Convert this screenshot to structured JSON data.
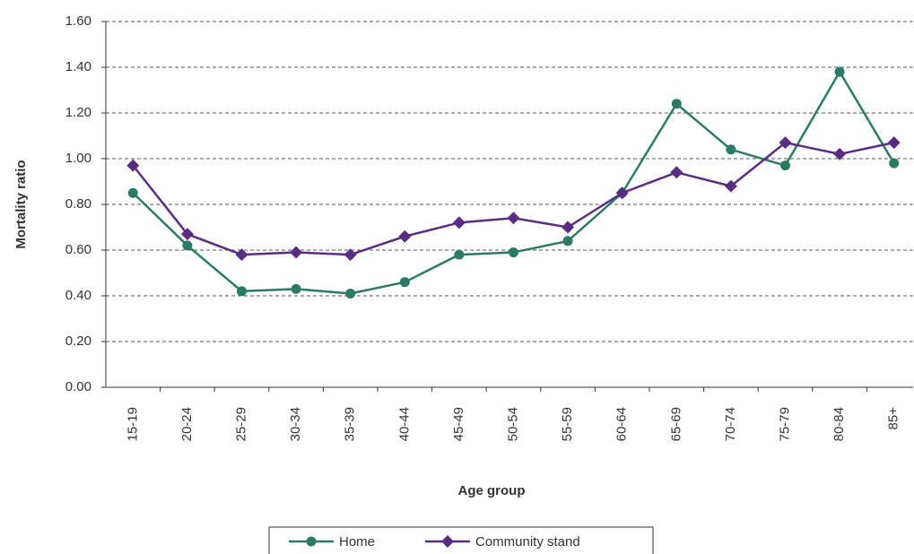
{
  "chart_data": {
    "type": "line",
    "x_label": "Age group",
    "y_label": "Mortality ratio",
    "categories": [
      "15-19",
      "20-24",
      "25-29",
      "30-34",
      "35-39",
      "40-44",
      "45-49",
      "50-54",
      "55-59",
      "60-64",
      "65-69",
      "70-74",
      "75-79",
      "80-84",
      "85+"
    ],
    "series": [
      {
        "name": "Home",
        "color": "#2b7a68",
        "marker": "circle",
        "values": [
          0.85,
          0.62,
          0.42,
          0.43,
          0.41,
          0.46,
          0.58,
          0.59,
          0.64,
          0.85,
          1.24,
          1.04,
          0.97,
          1.38,
          0.98
        ]
      },
      {
        "name": "Community stand",
        "color": "#5a2d82",
        "marker": "diamond",
        "values": [
          0.97,
          0.67,
          0.58,
          0.59,
          0.58,
          0.66,
          0.72,
          0.74,
          0.7,
          0.85,
          0.94,
          0.88,
          1.07,
          1.02,
          1.07
        ]
      }
    ],
    "ylim": [
      0,
      1.6
    ],
    "yticks": [
      {
        "value": 0,
        "label": "0.00"
      },
      {
        "value": 0.2,
        "label": "0.20"
      },
      {
        "value": 0.4,
        "label": "0.40"
      },
      {
        "value": 0.6,
        "label": "0.60"
      },
      {
        "value": 0.8,
        "label": "0.80"
      },
      {
        "value": 1.0,
        "label": "1.00"
      },
      {
        "value": 1.2,
        "label": "1.20"
      },
      {
        "value": 1.4,
        "label": "1.40"
      },
      {
        "value": 1.6,
        "label": "1.60"
      }
    ],
    "grid": true
  }
}
